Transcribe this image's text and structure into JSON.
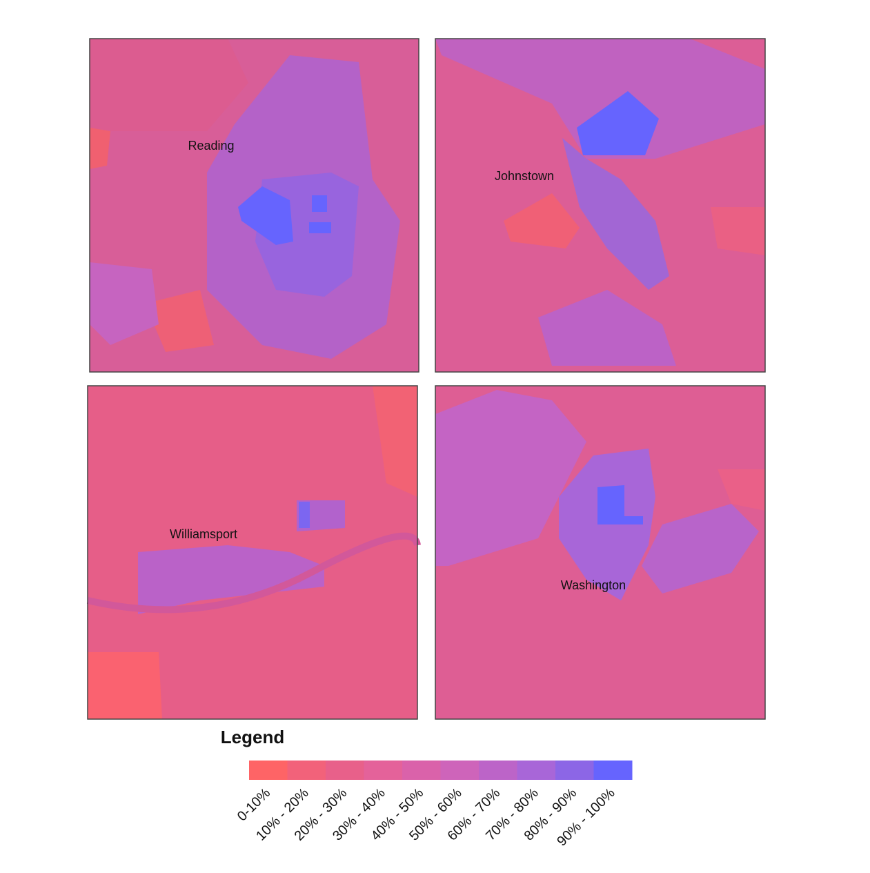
{
  "maps": [
    {
      "label": "Reading"
    },
    {
      "label": "Johnstown"
    },
    {
      "label": "Williamsport"
    },
    {
      "label": "Washington"
    }
  ],
  "legend": {
    "title": "Legend",
    "items": [
      {
        "label": "0-10%",
        "color": "#fe6466"
      },
      {
        "label": "10% - 20%",
        "color": "#f2627a"
      },
      {
        "label": "20% - 30%",
        "color": "#e8608a"
      },
      {
        "label": "30% - 40%",
        "color": "#e4629a"
      },
      {
        "label": "40% - 50%",
        "color": "#da62aa"
      },
      {
        "label": "50% - 60%",
        "color": "#ce64ba"
      },
      {
        "label": "60% - 70%",
        "color": "#bc64c8"
      },
      {
        "label": "70% - 80%",
        "color": "#a866d8"
      },
      {
        "label": "80% - 90%",
        "color": "#8c66e6"
      },
      {
        "label": "90% - 100%",
        "color": "#6664fe"
      }
    ]
  }
}
